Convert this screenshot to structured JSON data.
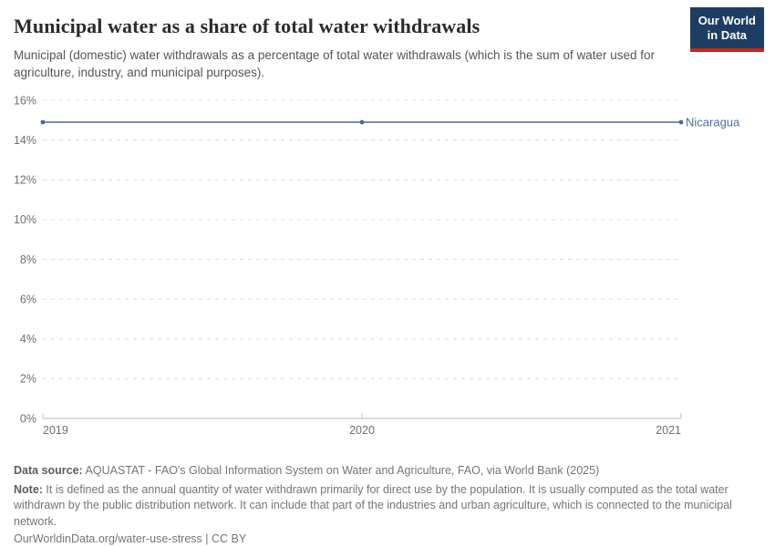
{
  "header": {
    "title": "Municipal water as a share of total water withdrawals",
    "subtitle": "Municipal (domestic) water withdrawals as a percentage of total water withdrawals (which is the sum of water used for agriculture, industry, and municipal purposes).",
    "logo": {
      "line1": "Our World",
      "line2": "in Data",
      "bg_color": "#1d3d63",
      "accent_color": "#c5281c"
    }
  },
  "chart_data": {
    "type": "line",
    "title": "Municipal water as a share of total water withdrawals",
    "x": [
      2019,
      2020,
      2021
    ],
    "series": [
      {
        "name": "Nicaragua",
        "values": [
          14.9,
          14.9,
          14.9
        ],
        "line_color": "#7a8eaf",
        "dot_color": "#4d6795",
        "label_color": "#4c6e9e"
      }
    ],
    "xlabel": "",
    "ylabel": "",
    "ylim": [
      0,
      16
    ],
    "ytick_step": 2,
    "ytick_suffix": "%",
    "grid": true,
    "grid_color": "#dcdcdc",
    "axis_color": "#c6c6c6",
    "legend_position": "end-of-line"
  },
  "footer": {
    "data_source_label": "Data source:",
    "data_source_text": " AQUASTAT - FAO's Global Information System on Water and Agriculture, FAO, via World Bank (2025)",
    "note_label": "Note:",
    "note_text": " It is defined as the annual quantity of water withdrawn primarily for direct use by the population. It is usually computed as the total water withdrawn by the public distribution network. It can include that part of the industries and urban agriculture, which is connected to the municipal network.",
    "citation_url": "OurWorldinData.org/water-use-stress",
    "citation_separator": " | ",
    "citation_license": "CC BY"
  }
}
